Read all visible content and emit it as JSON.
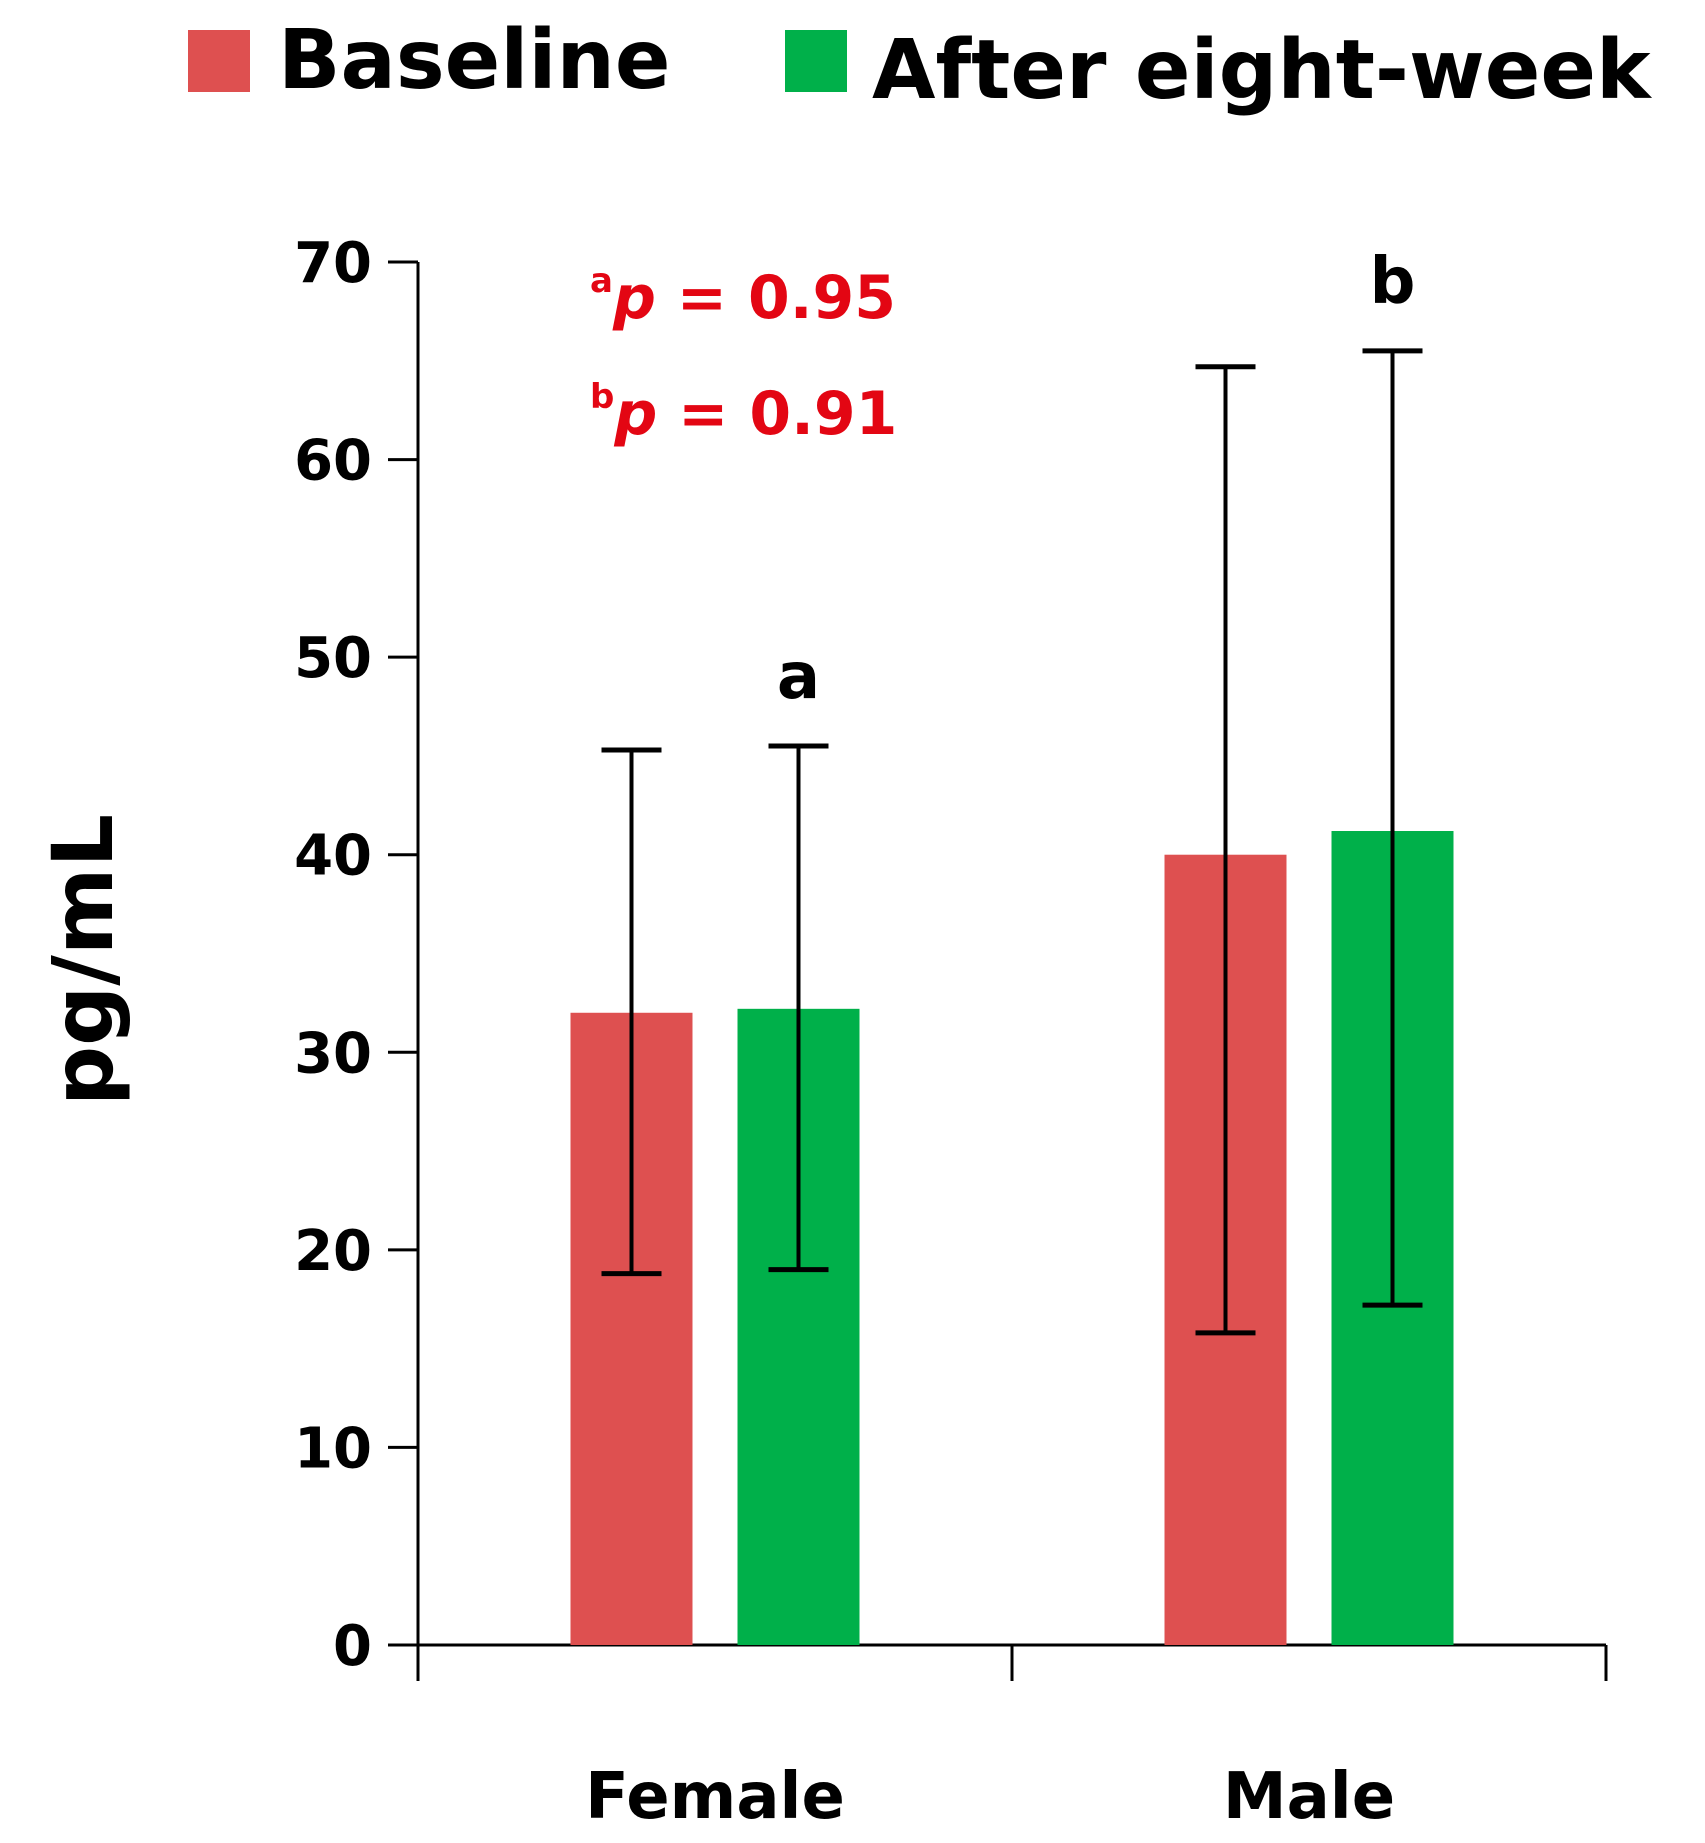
{
  "chart_data": {
    "type": "bar",
    "categories": [
      "Female",
      "Male"
    ],
    "ylabel": "pg/mL",
    "ylim": [
      0,
      70
    ],
    "yticks": [
      0,
      10,
      20,
      30,
      40,
      50,
      60,
      70
    ],
    "grid": false,
    "legend_position": "top",
    "series": [
      {
        "name": "Baseline",
        "color": "#DE5050",
        "values": [
          32.0,
          40.0
        ],
        "error_low": [
          18.8,
          15.8
        ],
        "error_high": [
          45.3,
          64.7
        ]
      },
      {
        "name": "After eight-week",
        "color": "#00B04A",
        "values": [
          32.2,
          41.2
        ],
        "error_low": [
          19.0,
          17.2
        ],
        "error_high": [
          45.5,
          65.5
        ]
      }
    ],
    "significance_letters": [
      "a",
      "b"
    ],
    "annotations": [
      {
        "sup": "a",
        "p": "p",
        "text": " = 0.95",
        "color": "#E30613"
      },
      {
        "sup": "b",
        "p": "p",
        "text": " = 0.91",
        "color": "#E30613"
      }
    ]
  }
}
